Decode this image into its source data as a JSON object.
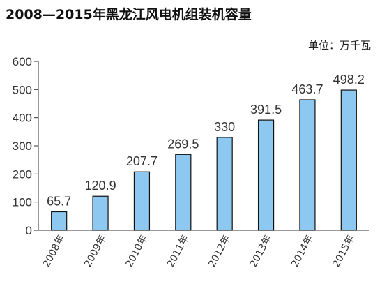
{
  "chart_data": {
    "type": "bar",
    "title": "2008—2015年黑龙江风电机组装机容量",
    "unit": "单位：万千瓦",
    "categories": [
      "2008年",
      "2009年",
      "2010年",
      "2011年",
      "2012年",
      "2013年",
      "2014年",
      "2015年"
    ],
    "values": [
      65.7,
      120.9,
      207.7,
      269.5,
      330,
      391.5,
      463.7,
      498.2
    ],
    "data_labels": [
      "65.7",
      "120.9",
      "207.7",
      "269.5",
      "330",
      "391.5",
      "463.7",
      "498.2"
    ],
    "ylim": [
      0,
      600
    ],
    "yticks": [
      0,
      100,
      200,
      300,
      400,
      500,
      600
    ],
    "grid": false,
    "legend": "none",
    "bar_color": "#8cc8ef",
    "bar_edge_color": "#111111"
  }
}
